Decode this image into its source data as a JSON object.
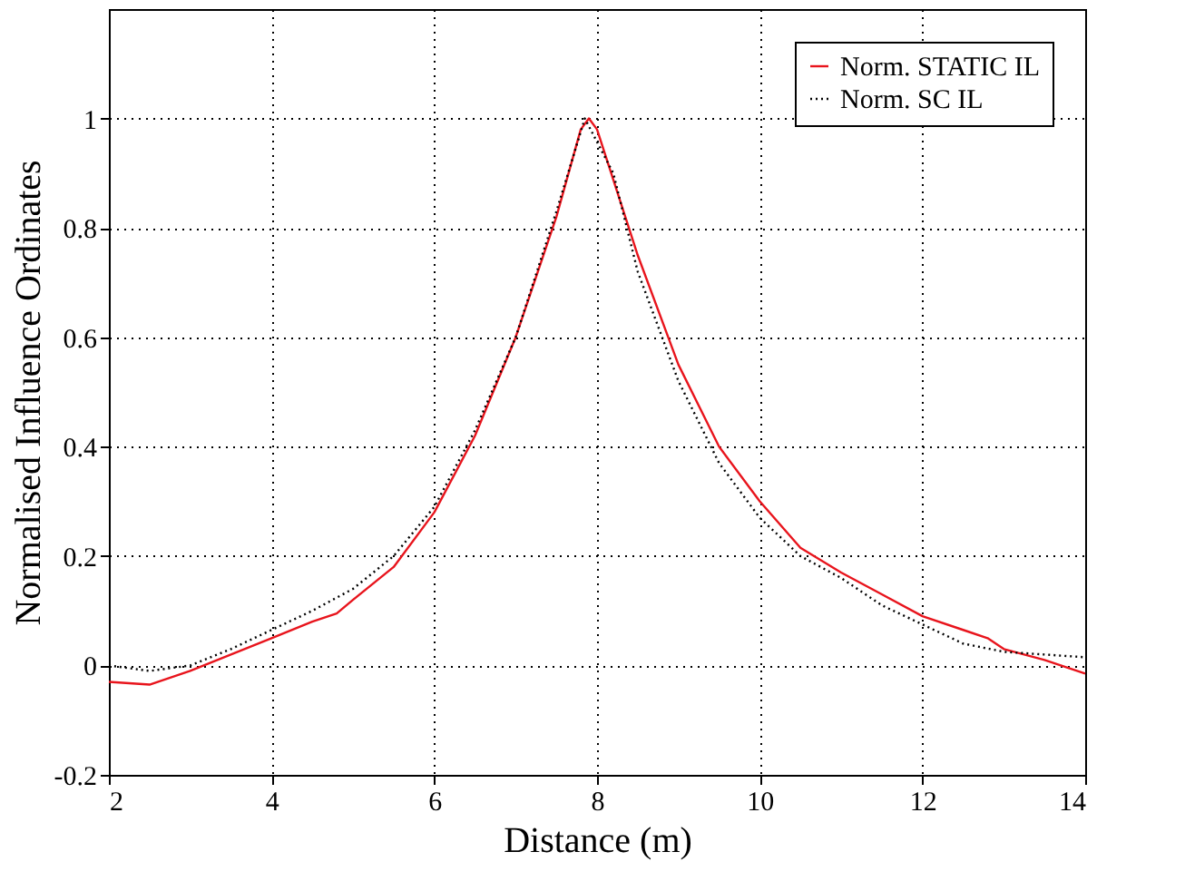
{
  "chart_data": {
    "type": "line",
    "xlabel": "Distance (m)",
    "ylabel": "Normalised Influence Ordinates",
    "xlim": [
      2,
      14
    ],
    "xticks": [
      2,
      4,
      6,
      8,
      10,
      12,
      14
    ],
    "ylim": [
      -0.2,
      1.2
    ],
    "yticks": [
      -0.2,
      0,
      0.2,
      0.4,
      0.6,
      0.8,
      1
    ],
    "grid": true,
    "legend": "top right",
    "marker": "none",
    "series": [
      {
        "name": "Norm. STATIC IL",
        "color": "#e8141c",
        "line_style": "solid",
        "x": [
          2,
          2.5,
          3,
          3.5,
          4,
          4.5,
          4.8,
          5,
          5.5,
          6,
          6.5,
          7,
          7.5,
          7.8,
          7.9,
          8,
          8.5,
          9,
          9.5,
          10,
          10.5,
          11,
          11.5,
          12,
          12.5,
          12.8,
          13,
          13.5,
          14
        ],
        "values": [
          -0.03,
          -0.035,
          -0.01,
          0.02,
          0.05,
          0.08,
          0.095,
          0.12,
          0.18,
          0.28,
          0.42,
          0.6,
          0.82,
          0.98,
          1.0,
          0.98,
          0.75,
          0.55,
          0.4,
          0.3,
          0.215,
          0.17,
          0.13,
          0.09,
          0.065,
          0.05,
          0.03,
          0.01,
          -0.015
        ]
      },
      {
        "name": "Norm. SC IL",
        "color": "#000000",
        "line_style": "dotted",
        "x": [
          2,
          2.5,
          3,
          3.5,
          4,
          4.5,
          5,
          5.5,
          6,
          6.5,
          7,
          7.5,
          7.85,
          8.2,
          8.5,
          9,
          9.5,
          10,
          10.5,
          11,
          11.5,
          12,
          12.5,
          13,
          13.5,
          14
        ],
        "values": [
          0.0,
          -0.01,
          0.0,
          0.03,
          0.065,
          0.1,
          0.14,
          0.2,
          0.29,
          0.43,
          0.6,
          0.83,
          1.0,
          0.9,
          0.72,
          0.52,
          0.37,
          0.27,
          0.2,
          0.16,
          0.11,
          0.075,
          0.04,
          0.025,
          0.02,
          0.015
        ]
      }
    ]
  }
}
